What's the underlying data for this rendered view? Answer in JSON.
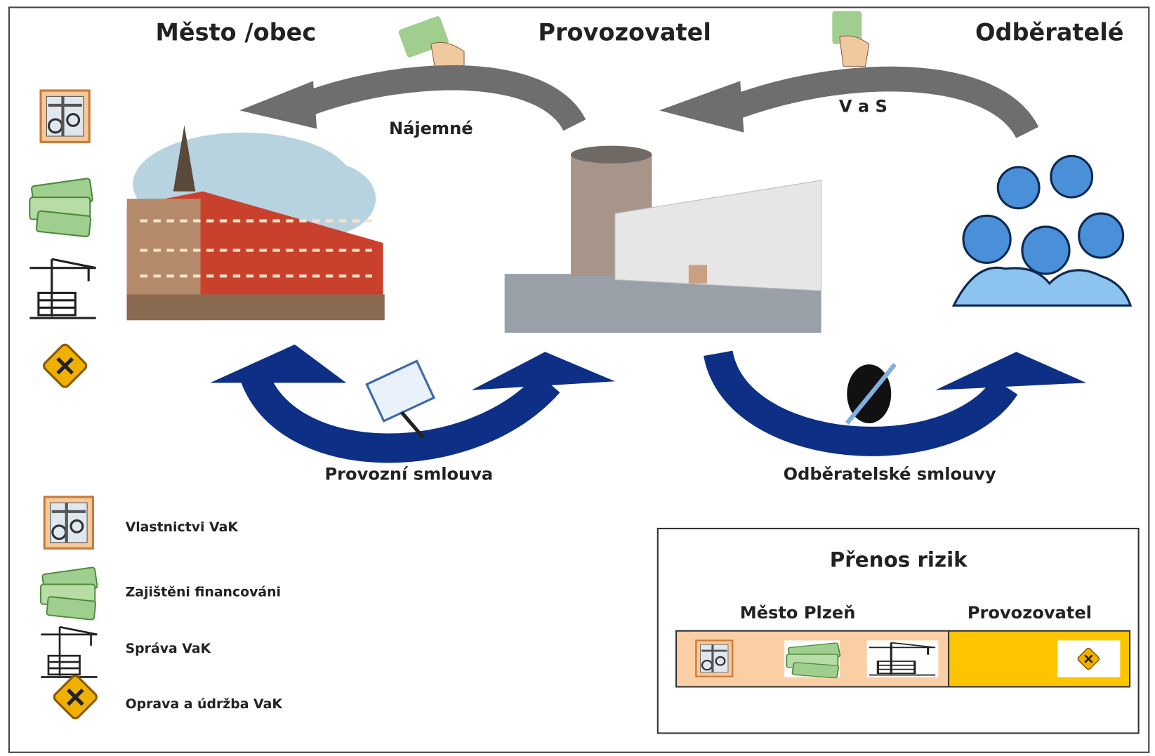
{
  "header": {
    "parties": [
      "Město /obec",
      "Provozovatel",
      "Odběratelé"
    ]
  },
  "flows": {
    "top": [
      "Nájemné",
      "V a S"
    ],
    "bottom": [
      "Provozní smlouva",
      "Odběratelské smlouvy"
    ]
  },
  "legend": [
    "Vlastnictvi VaK",
    "Zajištěni financováni",
    "Správa VaK",
    "Oprava a údržba VaK"
  ],
  "risk": {
    "title": "Přenos rizik",
    "columns": [
      "Město Plzeň",
      "Provozovatel"
    ]
  }
}
